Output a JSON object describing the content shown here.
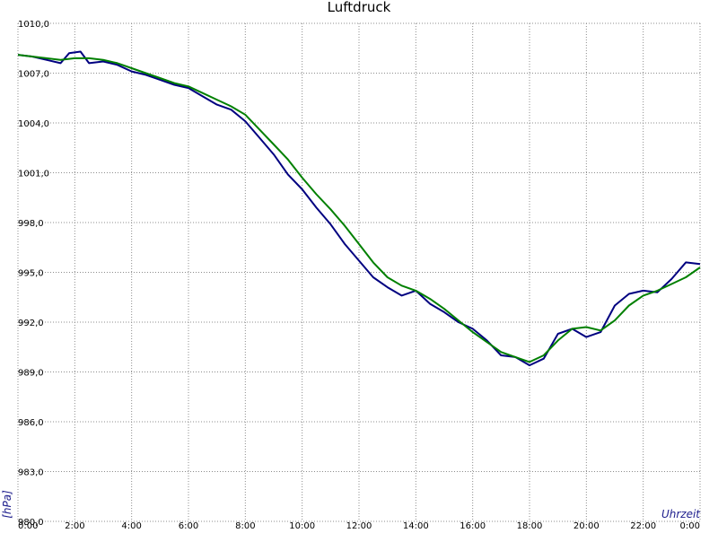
{
  "chart_data": {
    "type": "line",
    "title": "Luftdruck",
    "xlabel": "Uhrzeit",
    "ylabel": "[hPa]",
    "x_unit": "hour of day",
    "xlim": [
      0,
      24
    ],
    "ylim": [
      980,
      1010
    ],
    "x_tick_values": [
      0,
      2,
      4,
      6,
      8,
      10,
      12,
      14,
      16,
      18,
      20,
      22,
      24
    ],
    "x_tick_labels": [
      "0:00",
      "2:00",
      "4:00",
      "6:00",
      "8:00",
      "10:00",
      "12:00",
      "14:00",
      "16:00",
      "18:00",
      "20:00",
      "22:00",
      "0:00"
    ],
    "y_tick_values": [
      980,
      983,
      986,
      989,
      992,
      995,
      998,
      1001,
      1004,
      1007,
      1010
    ],
    "y_tick_labels": [
      "980,0",
      "983,0",
      "986,0",
      "989,0",
      "992,0",
      "995,0",
      "998,0",
      "1001,0",
      "1004,0",
      "1007,0",
      "1010,0"
    ],
    "grid": true,
    "series": [
      {
        "color": "#000080",
        "x": [
          0,
          0.5,
          1,
          1.5,
          1.8,
          2.2,
          2.5,
          3,
          3.5,
          4,
          4.5,
          5,
          5.5,
          6,
          6.5,
          7,
          7.5,
          8,
          8.5,
          9,
          9.5,
          10,
          10.5,
          11,
          11.5,
          12,
          12.5,
          13,
          13.5,
          14,
          14.5,
          15,
          15.5,
          16,
          16.5,
          17,
          17.5,
          18,
          18.5,
          19,
          19.5,
          20,
          20.5,
          21,
          21.5,
          22,
          22.5,
          23,
          23.5,
          24
        ],
        "y": [
          1008.1,
          1008.0,
          1007.8,
          1007.6,
          1008.2,
          1008.3,
          1007.6,
          1007.7,
          1007.5,
          1007.1,
          1006.9,
          1006.6,
          1006.3,
          1006.1,
          1005.6,
          1005.1,
          1004.8,
          1004.1,
          1003.1,
          1002.1,
          1000.9,
          1000.0,
          998.9,
          997.9,
          996.7,
          995.7,
          994.7,
          994.1,
          993.6,
          993.9,
          993.1,
          992.6,
          992.0,
          991.6,
          990.9,
          990.0,
          989.9,
          989.4,
          989.8,
          991.3,
          991.6,
          991.1,
          991.4,
          993.0,
          993.7,
          993.9,
          993.8,
          994.6,
          995.6,
          995.5
        ]
      },
      {
        "color": "#008000",
        "x": [
          0,
          0.5,
          1,
          1.5,
          2,
          2.5,
          3,
          3.5,
          4,
          4.5,
          5,
          5.5,
          6,
          6.5,
          7,
          7.5,
          8,
          8.5,
          9,
          9.5,
          10,
          10.5,
          11,
          11.5,
          12,
          12.5,
          13,
          13.5,
          14,
          14.5,
          15,
          15.5,
          16,
          16.5,
          17,
          17.5,
          18,
          18.5,
          19,
          19.5,
          20,
          20.5,
          21,
          21.5,
          22,
          22.5,
          23,
          23.5,
          24
        ],
        "y": [
          1008.1,
          1008.0,
          1007.9,
          1007.8,
          1007.9,
          1007.9,
          1007.8,
          1007.6,
          1007.3,
          1007.0,
          1006.7,
          1006.4,
          1006.2,
          1005.8,
          1005.4,
          1005.0,
          1004.5,
          1003.6,
          1002.7,
          1001.8,
          1000.7,
          999.7,
          998.8,
          997.8,
          996.7,
          995.6,
          994.7,
          994.2,
          993.9,
          993.4,
          992.8,
          992.1,
          991.4,
          990.8,
          990.2,
          989.9,
          989.6,
          990.0,
          990.9,
          991.6,
          991.7,
          991.5,
          992.1,
          993.0,
          993.6,
          993.9,
          994.3,
          994.7,
          995.3
        ]
      }
    ]
  }
}
